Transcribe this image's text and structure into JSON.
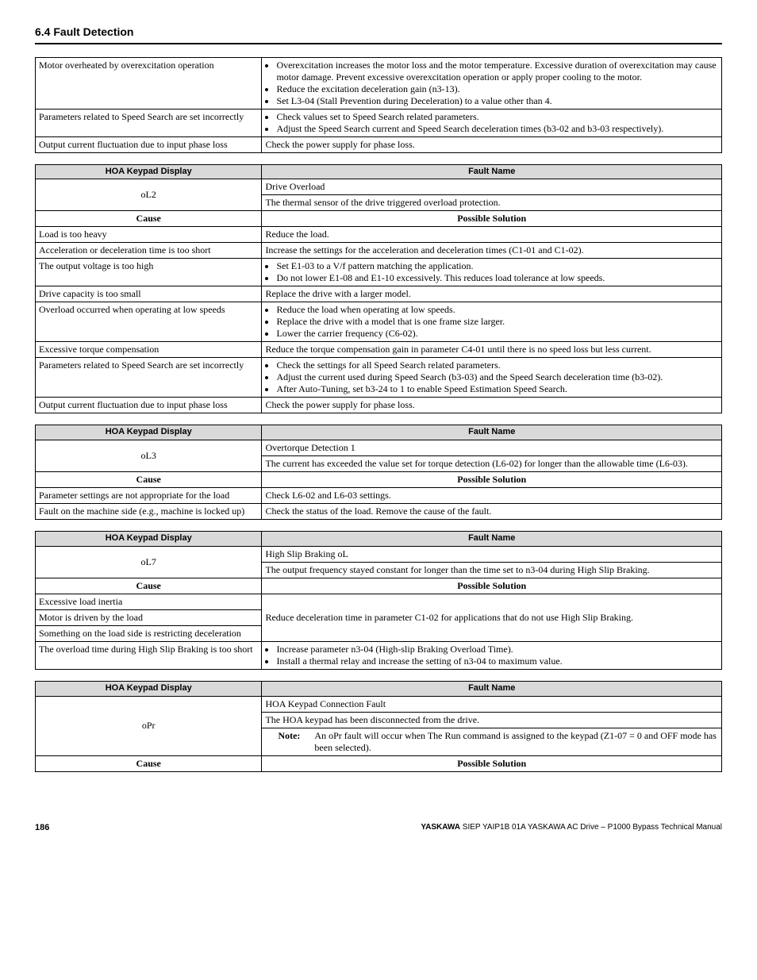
{
  "section": {
    "title": "6.4 Fault Detection"
  },
  "table0": {
    "r1_cause": "Motor overheated by overexcitation operation",
    "r1_sol1": "Overexcitation increases the motor loss and the motor temperature. Excessive duration of overexcitation may cause motor damage. Prevent excessive overexcitation operation or apply proper cooling to the motor.",
    "r1_sol2": "Reduce the excitation deceleration gain (n3-13).",
    "r1_sol3": "Set L3-04 (Stall Prevention during Deceleration) to a value other than 4.",
    "r2_cause": "Parameters related to Speed Search are set incorrectly",
    "r2_sol1": "Check values set to Speed Search related parameters.",
    "r2_sol2": "Adjust the Speed Search current and Speed Search deceleration times (b3-02 and b3-03 respectively).",
    "r3_cause": "Output current fluctuation due to input phase loss",
    "r3_sol": "Check the power supply for phase loss."
  },
  "table1": {
    "h1": "HOA Keypad Display",
    "h2": "Fault Name",
    "code": "oL2",
    "fault_name": "Drive Overload",
    "fault_desc": "The thermal sensor of the drive triggered overload protection.",
    "h_cause": "Cause",
    "h_sol": "Possible Solution",
    "r1_c": "Load is too heavy",
    "r1_s": "Reduce the load.",
    "r2_c": "Acceleration or deceleration time is too short",
    "r2_s": "Increase the settings for the acceleration and deceleration times (C1-01 and C1-02).",
    "r3_c": "The output voltage is too high",
    "r3_s1": "Set E1-03 to a V/f pattern matching the application.",
    "r3_s2": "Do not lower E1-08 and E1-10 excessively. This reduces load tolerance at low speeds.",
    "r4_c": "Drive capacity is too small",
    "r4_s": "Replace the drive with a larger model.",
    "r5_c": "Overload occurred when operating at low speeds",
    "r5_s1": "Reduce the load when operating at low speeds.",
    "r5_s2": "Replace the drive with a model that is one frame size larger.",
    "r5_s3": "Lower the carrier frequency (C6-02).",
    "r6_c": "Excessive torque compensation",
    "r6_s": "Reduce the torque compensation gain in parameter C4-01 until there is no speed loss but less current.",
    "r7_c": "Parameters related to Speed Search are set incorrectly",
    "r7_s1": "Check the settings for all Speed Search related parameters.",
    "r7_s2": "Adjust the current used during Speed Search (b3-03) and the Speed Search deceleration time (b3-02).",
    "r7_s3": "After Auto-Tuning, set b3-24 to 1 to enable Speed Estimation Speed Search.",
    "r8_c": "Output current fluctuation due to input phase loss",
    "r8_s": "Check the power supply for phase loss."
  },
  "table2": {
    "h1": "HOA Keypad Display",
    "h2": "Fault Name",
    "code": "oL3",
    "fault_name": "Overtorque Detection 1",
    "fault_desc": "The current has exceeded the value set for torque detection (L6-02) for longer than the allowable time (L6-03).",
    "h_cause": "Cause",
    "h_sol": "Possible Solution",
    "r1_c": "Parameter settings are not appropriate for the load",
    "r1_s": "Check L6-02 and L6-03 settings.",
    "r2_c": "Fault on the machine side (e.g., machine is locked up)",
    "r2_s": "Check the status of the load. Remove the cause of the fault."
  },
  "table3": {
    "h1": "HOA Keypad Display",
    "h2": "Fault Name",
    "code": "oL7",
    "fault_name": "High Slip Braking oL",
    "fault_desc": "The output frequency stayed constant for longer than the time set to n3-04 during High Slip Braking.",
    "h_cause": "Cause",
    "h_sol": "Possible Solution",
    "r1_c": "Excessive load inertia",
    "r2_c": "Motor is driven by the load",
    "r3_c": "Something on the load side is restricting deceleration",
    "r123_s": "Reduce deceleration time in parameter C1-02 for applications that do not use High Slip Braking.",
    "r4_c": "The overload time during High Slip Braking is too short",
    "r4_s1": "Increase parameter n3-04 (High-slip Braking Overload Time).",
    "r4_s2": "Install a thermal relay and increase the setting of n3-04 to maximum value."
  },
  "table4": {
    "h1": "HOA Keypad Display",
    "h2": "Fault Name",
    "code": "oPr",
    "fault_name": "HOA Keypad Connection Fault",
    "fault_desc": "The HOA keypad has been disconnected from the drive.",
    "note_label": "Note:",
    "note_text": "An oPr fault will occur when The Run command is assigned to the keypad (Z1-07 = 0 and OFF mode has been selected).",
    "h_cause": "Cause",
    "h_sol": "Possible Solution"
  },
  "footer": {
    "page": "186",
    "brand": "YASKAWA",
    "manual": " SIEP YAIP1B 01A YASKAWA AC Drive – P1000 Bypass Technical Manual"
  }
}
